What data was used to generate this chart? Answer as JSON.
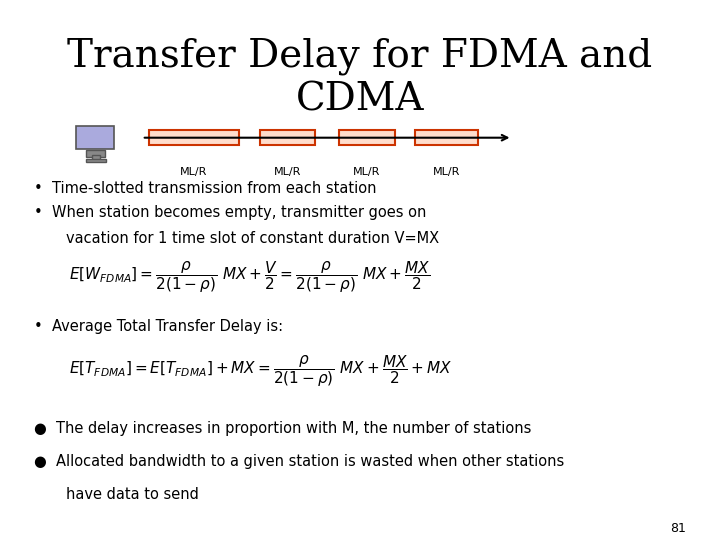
{
  "title": "Transfer Delay for FDMA and\nCDMA",
  "title_fontsize": 28,
  "bg_color": "#ffffff",
  "text_color": "#000000",
  "bullet1": "Time-slotted transmission from each station",
  "bullet2_line1": "When station becomes empty, transmitter goes on",
  "bullet2_line2": "vacation for 1 time slot of constant duration V=MX",
  "formula1": "$E[W_{FDMA}] = \\dfrac{\\rho}{2(1-\\rho)}\\ MX + \\dfrac{V}{2} = \\dfrac{\\rho}{2(1-\\rho)}\\ MX + \\dfrac{MX}{2}$",
  "bullet3": "Average Total Transfer Delay is:",
  "formula2": "$E[T_{FDMA}] = E[T_{FDMA}] + MX = \\dfrac{\\rho}{2(1-\\rho)}\\ MX + \\dfrac{MX}{2} + MX$",
  "bullet4": "The delay increases in proportion with M, the number of stations",
  "bullet5_line1": "Allocated bandwidth to a given station is wasted when other stations",
  "bullet5_line2": "have data to send",
  "page_num": "81",
  "slot_color": "#cc3300",
  "arrow_color": "#000000",
  "slot_labels": [
    "ML/R",
    "ML/R",
    "ML/R",
    "ML/R"
  ]
}
